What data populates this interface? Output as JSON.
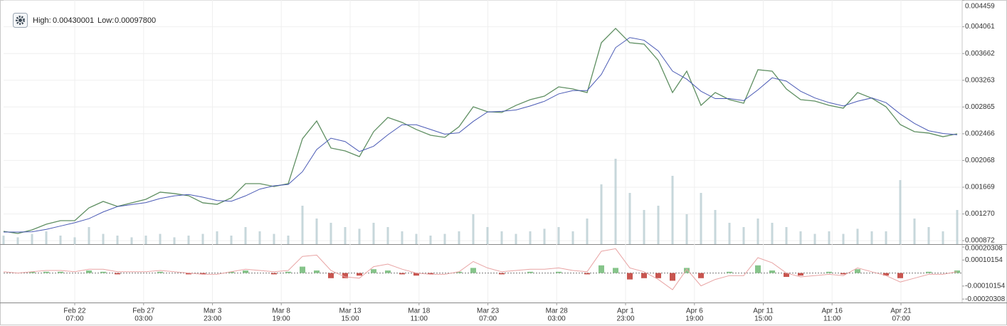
{
  "header": {
    "high_label": "High:",
    "high": "0.00430001",
    "low_label": "Low:",
    "low": "0.00097800"
  },
  "chart_data": [
    {
      "type": "line",
      "x": [
        0,
        1,
        2,
        3,
        4,
        5,
        6,
        7,
        8,
        9,
        10,
        11,
        12,
        13,
        14,
        15,
        16,
        17,
        18,
        19,
        20,
        21,
        22,
        23,
        24,
        25,
        26,
        27,
        28,
        29,
        30,
        31,
        32,
        33,
        34,
        35,
        36,
        37,
        38,
        39,
        40,
        41,
        42,
        43,
        44,
        45,
        46,
        47,
        48,
        49,
        50,
        51,
        52,
        53,
        54,
        55,
        56,
        57,
        58,
        59,
        60,
        61,
        62,
        63,
        64,
        65,
        66,
        67
      ],
      "xlim": [
        0,
        67.35
      ],
      "xticks": [
        {
          "value": 5,
          "label": "Feb 22"
        },
        {
          "value": 9.84,
          "label": "Feb 27"
        },
        {
          "value": 14.68,
          "label": "Mar 3"
        },
        {
          "value": 19.51,
          "label": "Mar 8"
        },
        {
          "value": 24.35,
          "label": "Mar 13"
        },
        {
          "value": 29.19,
          "label": "Mar 18"
        },
        {
          "value": 34.03,
          "label": "Mar 23"
        },
        {
          "value": 38.86,
          "label": "Mar 28"
        },
        {
          "value": 43.7,
          "label": "Apr 1"
        },
        {
          "value": 48.54,
          "label": "Apr 6"
        },
        {
          "value": 53.38,
          "label": "Apr 11"
        },
        {
          "value": 58.21,
          "label": "Apr 16"
        },
        {
          "value": 63.05,
          "label": "Apr 21"
        }
      ],
      "xtick_times": [
        "07:00",
        "03:00",
        "23:00",
        "19:00",
        "15:00",
        "11:00",
        "07:00",
        "03:00",
        "23:00",
        "19:00",
        "15:00",
        "11:00",
        "07:00"
      ],
      "ylim": [
        0.00082,
        0.00446
      ],
      "yticks": [
        0.004459,
        0.004061,
        0.003662,
        0.003263,
        0.002865,
        0.002466,
        0.002068,
        0.001669,
        {
          "value": 0.00127,
          "label": "0.001270"
        },
        0.000872
      ],
      "grid": true,
      "series": [
        {
          "type": "line",
          "color": "#5f8f62",
          "values": [
            0.001011,
            0.000979,
            0.001032,
            0.001117,
            0.00117,
            0.00117,
            0.001361,
            0.001457,
            0.001383,
            0.001436,
            0.001489,
            0.001595,
            0.001574,
            0.001542,
            0.001436,
            0.001414,
            0.00151,
            0.001722,
            0.001722,
            0.00168,
            0.001722,
            0.002391,
            0.002656,
            0.002253,
            0.00221,
            0.002125,
            0.002497,
            0.002709,
            0.002635,
            0.002529,
            0.002444,
            0.002412,
            0.002571,
            0.002868,
            0.002794,
            0.002783,
            0.002889,
            0.002974,
            0.003027,
            0.003165,
            0.003133,
            0.00308,
            0.003823,
            0.004036,
            0.003823,
            0.003802,
            0.003558,
            0.00308,
            0.003399,
            0.002889,
            0.00308,
            0.002974,
            0.002921,
            0.00342,
            0.003399,
            0.003133,
            0.002974,
            0.002953,
            0.002889,
            0.002847,
            0.00308,
            0.002996,
            0.002868,
            0.002603,
            0.002497,
            0.002476,
            0.002422,
            0.002465
          ]
        },
        {
          "type": "line",
          "color": "#4a5ab5",
          "values": [
            0.001,
            0.001,
            0.001005,
            0.00104,
            0.00109,
            0.00114,
            0.0012,
            0.0013,
            0.00138,
            0.00141,
            0.00144,
            0.0015,
            0.00154,
            0.00156,
            0.00152,
            0.00147,
            0.00146,
            0.00154,
            0.00164,
            0.00169,
            0.00171,
            0.0019,
            0.00223,
            0.0024,
            0.00235,
            0.0022,
            0.00228,
            0.00245,
            0.0026,
            0.0026,
            0.00253,
            0.00246,
            0.00248,
            0.00265,
            0.00279,
            0.0028,
            0.00282,
            0.00288,
            0.00295,
            0.00306,
            0.00311,
            0.00311,
            0.00335,
            0.00375,
            0.0039,
            0.00386,
            0.0037,
            0.0034,
            0.00328,
            0.0031,
            0.00299,
            0.00299,
            0.00296,
            0.00312,
            0.0033,
            0.00325,
            0.0031,
            0.003,
            0.00293,
            0.00288,
            0.00295,
            0.003,
            0.00293,
            0.00276,
            0.00262,
            0.00251,
            0.00247,
            0.00245
          ]
        },
        {
          "type": "bar",
          "color": "#b9cdd2",
          "values": [
            10,
            8,
            12,
            15,
            10,
            8,
            20,
            12,
            10,
            8,
            10,
            12,
            8,
            10,
            12,
            15,
            10,
            20,
            15,
            12,
            10,
            45,
            30,
            25,
            20,
            18,
            25,
            20,
            15,
            12,
            10,
            12,
            15,
            35,
            20,
            15,
            12,
            15,
            18,
            20,
            15,
            30,
            70,
            100,
            60,
            40,
            45,
            80,
            35,
            60,
            40,
            25,
            20,
            30,
            25,
            20,
            15,
            12,
            15,
            12,
            18,
            15,
            15,
            75,
            30,
            20,
            15,
            40
          ]
        }
      ]
    },
    {
      "type": "bar",
      "ylim": [
        -0.00023,
        0.00022
      ],
      "yticks": [
        0.00020308,
        0.00010154,
        -0.00010154,
        -0.00020308
      ],
      "series": [
        {
          "type": "bar",
          "color": "#86c48a",
          "negative_color": "#c8554f",
          "values": [
            0,
            0,
            1e-05,
            1e-05,
            1e-05,
            0,
            2e-05,
            1e-05,
            -1e-05,
            0,
            0,
            1e-05,
            0,
            -1e-05,
            -1e-05,
            0,
            1e-05,
            2e-05,
            0,
            -1e-05,
            1e-05,
            5e-05,
            2e-05,
            -4e-05,
            -4e-05,
            -2e-05,
            3e-05,
            2e-05,
            -1e-05,
            -2e-05,
            -1e-05,
            0,
            1e-05,
            4e-05,
            0,
            -1e-05,
            0,
            1e-05,
            0,
            1e-05,
            0,
            -1e-05,
            6e-05,
            4e-05,
            -5e-05,
            -4e-05,
            -4e-05,
            -6e-05,
            4e-05,
            -4e-05,
            0,
            1e-05,
            0,
            6e-05,
            2e-05,
            -3e-05,
            -2e-05,
            0,
            1e-05,
            -1e-05,
            3e-05,
            0,
            -2e-05,
            -4e-05,
            0,
            1e-05,
            0,
            2e-05
          ]
        },
        {
          "type": "line",
          "color": "#e8a3a3",
          "values": [
            1e-05,
            0,
            1e-05,
            2e-05,
            2e-05,
            1e-05,
            3e-05,
            3e-05,
            1e-05,
            1e-05,
            1e-05,
            2e-05,
            1e-05,
            0,
            -1e-05,
            -1e-05,
            1e-05,
            3e-05,
            2e-05,
            1e-05,
            2e-05,
            0.00013,
            0.00014,
            2e-05,
            -3e-05,
            -4e-05,
            5e-05,
            7e-05,
            3e-05,
            0,
            -1e-05,
            -1e-05,
            1e-05,
            9e-05,
            4e-05,
            1e-05,
            2e-05,
            3e-05,
            3e-05,
            4e-05,
            2e-05,
            1e-05,
            0.00017,
            0.00019,
            4e-05,
            1e-05,
            -5e-05,
            -0.00013,
            3e-05,
            -0.0001,
            -5e-05,
            -2e-05,
            -2e-05,
            0.00012,
            8e-05,
            0,
            -3e-05,
            -2e-05,
            -1e-05,
            -2e-05,
            4e-05,
            1e-05,
            -2e-05,
            -7e-05,
            -4e-05,
            -1e-05,
            -1e-05,
            1e-05
          ]
        }
      ]
    }
  ]
}
